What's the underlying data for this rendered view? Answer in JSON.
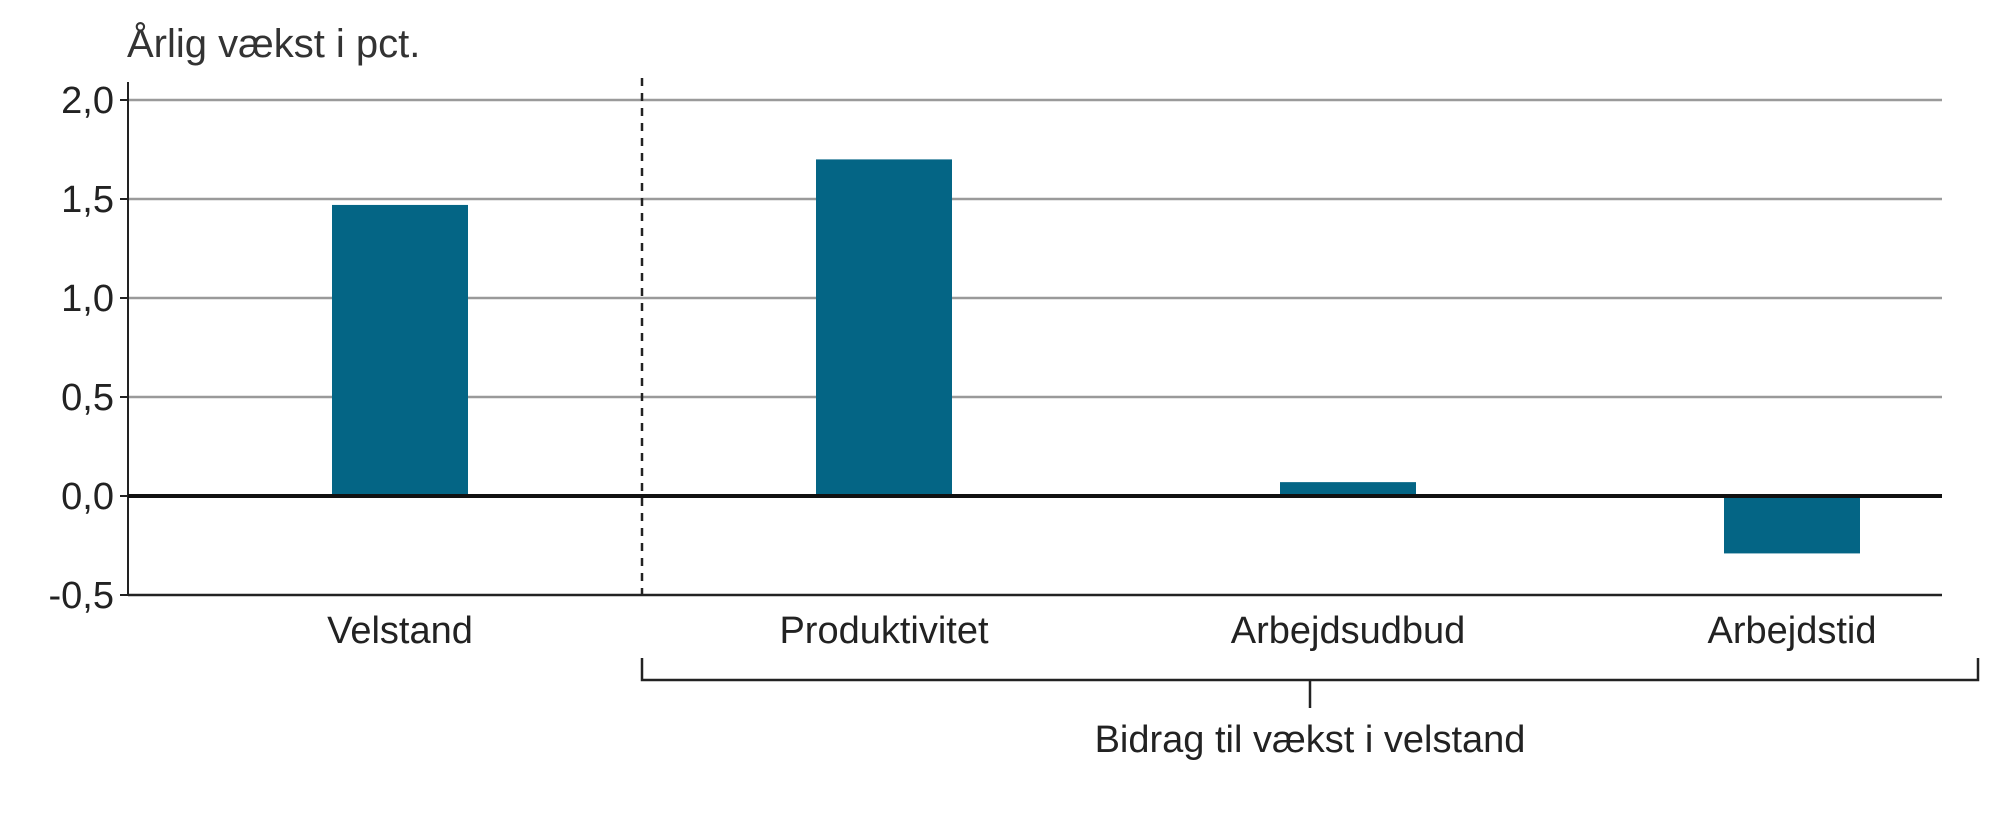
{
  "chart_data": {
    "type": "bar",
    "y_unit_label": "Årlig vækst i pct.",
    "categories": [
      "Velstand",
      "Produktivitet",
      "Arbejdsudbud",
      "Arbejdstid"
    ],
    "values": [
      1.47,
      1.7,
      0.07,
      -0.29
    ],
    "ylim": [
      -0.5,
      2.0
    ],
    "yticks": [
      2.0,
      1.5,
      1.0,
      0.5,
      0.0,
      -0.5
    ],
    "ytick_labels": [
      "2,0",
      "1,5",
      "1,0",
      "0,5",
      "0,0",
      "-0,5"
    ],
    "grid": true,
    "bar_color": "#046585",
    "group_bracket_label": "Bidrag til vækst i velstand",
    "group_bracket_members": [
      "Produktivitet",
      "Arbejdsudbud",
      "Arbejdstid"
    ]
  }
}
